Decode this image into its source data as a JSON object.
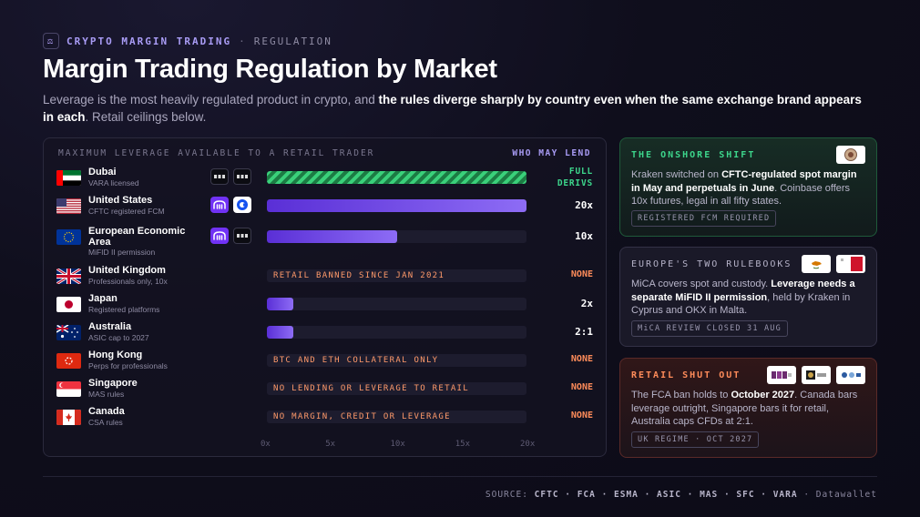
{
  "header": {
    "kicker": "CRYPTO MARGIN TRADING",
    "kicker_sep": "·",
    "kicker_sub": "REGULATION",
    "title": "Margin Trading Regulation by Market",
    "subtitle_plain": "Leverage is the most heavily regulated product in crypto, and ",
    "subtitle_bold": "the rules diverge sharply by country even when the same exchange brand appears in each",
    "subtitle_tail": ". Retail ceilings below."
  },
  "chart_data": {
    "type": "bar",
    "title": "MAXIMUM LEVERAGE AVAILABLE TO A RETAIL TRADER",
    "right_header": "WHO MAY LEND",
    "xlim": [
      0,
      20
    ],
    "x_ticks": [
      "0x",
      "5x",
      "10x",
      "15x",
      "20x"
    ],
    "rows": [
      {
        "market": "Dubai",
        "regime": "VARA licensed",
        "flag": "ae",
        "logos": [
          "OKX",
          "BYBIT"
        ],
        "value": 20,
        "display": "FULL DERIVS",
        "striped": true,
        "note": ""
      },
      {
        "market": "United States",
        "regime": "CFTC registered FCM",
        "flag": "us",
        "logos": [
          "kraken",
          "coinbase"
        ],
        "value": 20,
        "display": "20x",
        "striped": false,
        "note": ""
      },
      {
        "market": "European Economic Area",
        "regime": "MiFID II permission",
        "flag": "eu",
        "logos": [
          "kraken",
          "OKX"
        ],
        "value": 10,
        "display": "10x",
        "striped": false,
        "note": ""
      },
      {
        "market": "United Kingdom",
        "regime": "Professionals only, 10x",
        "flag": "uk",
        "logos": [],
        "value": 0,
        "display": "NONE",
        "striped": false,
        "note": "RETAIL BANNED SINCE JAN 2021"
      },
      {
        "market": "Japan",
        "regime": "Registered platforms",
        "flag": "jp",
        "logos": [],
        "value": 2,
        "display": "2x",
        "striped": false,
        "note": ""
      },
      {
        "market": "Australia",
        "regime": "ASIC cap to 2027",
        "flag": "au",
        "logos": [],
        "value": 2,
        "display": "2:1",
        "striped": false,
        "note": ""
      },
      {
        "market": "Hong Kong",
        "regime": "Perps for professionals",
        "flag": "hk",
        "logos": [],
        "value": 0,
        "display": "NONE",
        "striped": false,
        "note": "BTC AND ETH COLLATERAL ONLY"
      },
      {
        "market": "Singapore",
        "regime": "MAS rules",
        "flag": "sg",
        "logos": [],
        "value": 0,
        "display": "NONE",
        "striped": false,
        "note": "NO LENDING OR LEVERAGE TO RETAIL"
      },
      {
        "market": "Canada",
        "regime": "CSA rules",
        "flag": "ca",
        "logos": [],
        "value": 0,
        "display": "NONE",
        "striped": false,
        "note": "NO MARGIN, CREDIT OR LEVERAGE"
      }
    ]
  },
  "cards": [
    {
      "title": "THE ONSHORE SHIFT",
      "body_1": "Kraken switched on ",
      "body_bold": "CFTC-regulated spot margin in May and perpetuals in June",
      "body_2": ". Coinbase offers 10x futures, legal in all fifty states.",
      "tag": "REGISTERED FCM REQUIRED"
    },
    {
      "title": "EUROPE'S TWO RULEBOOKS",
      "body_1": "MiCA covers spot and custody. ",
      "body_bold": "Leverage needs a separate MiFID II permission",
      "body_2": ", held by Kraken in Cyprus and OKX in Malta.",
      "tag": "MiCA REVIEW CLOSED 31 AUG"
    },
    {
      "title": "RETAIL SHUT OUT",
      "body_1": "The FCA ban holds to ",
      "body_bold": "October 2027",
      "body_2": ". Canada bars leverage outright, Singapore bars it for retail, Australia caps CFDs at 2:1.",
      "tag": "UK REGIME · OCT 2027"
    }
  ],
  "footer": {
    "source_label": "SOURCE:",
    "sources": "CFTC · FCA · ESMA · ASIC · MAS · SFC · VARA",
    "brand": "Datawallet"
  },
  "colors": {
    "accent": "#a99cf5",
    "bar": "#7c5cf0",
    "green": "#3dd68c",
    "orange": "#ff8c5a"
  }
}
